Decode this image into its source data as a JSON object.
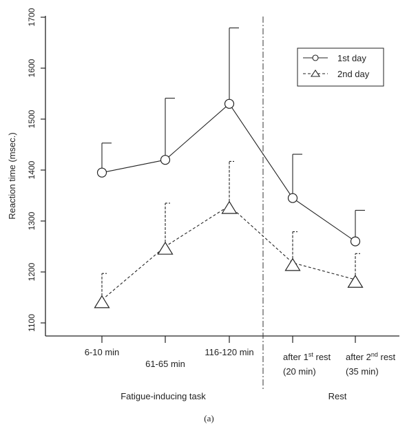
{
  "chart_data": {
    "type": "line",
    "ylabel": "Reaction time (msec.)",
    "ylim": [
      1100,
      1700
    ],
    "yticks": [
      1100,
      1200,
      1300,
      1400,
      1500,
      1600,
      1700
    ],
    "grid": false,
    "legend_position": "top-right",
    "categories": [
      {
        "lines": [
          {
            "text": "6-10 min"
          }
        ]
      },
      {
        "lines": [
          {
            "text": "61-65 min"
          }
        ]
      },
      {
        "lines": [
          {
            "text": "116-120 min"
          }
        ]
      },
      {
        "lines": [
          {
            "text": "after 1"
          },
          {
            "text": "st",
            "sup": true
          },
          {
            "text": " rest"
          }
        ],
        "sub": "(20 min)"
      },
      {
        "lines": [
          {
            "text": "after 2"
          },
          {
            "text": "nd",
            "sup": true
          },
          {
            "text": " rest"
          }
        ],
        "sub": "(35 min)"
      }
    ],
    "groups": [
      "Fatigue-inducing task",
      "Rest"
    ],
    "series": [
      {
        "name": "1st day",
        "marker": "circle",
        "dash": "solid",
        "values": [
          1395,
          1420,
          1530,
          1345,
          1260
        ],
        "error_upper": [
          1453,
          1541,
          1679,
          1431,
          1321
        ]
      },
      {
        "name": "2nd day",
        "marker": "triangle",
        "dash": "dashed",
        "values": [
          1145,
          1250,
          1330,
          1218,
          1185
        ],
        "error_upper": [
          1197,
          1335,
          1417,
          1279,
          1236
        ]
      }
    ]
  },
  "caption": "(a)"
}
